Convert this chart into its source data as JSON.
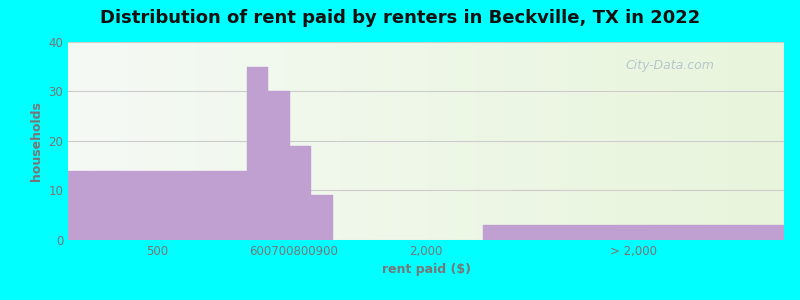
{
  "title": "Distribution of rent paid by renters in Beckville, TX in 2022",
  "xlabel": "rent paid ($)",
  "ylabel": "households",
  "bar_values": [
    14,
    35,
    30,
    19,
    9,
    3
  ],
  "bar_color": "#c0a0d0",
  "bar_edge_color": "#c0a0d0",
  "ylim": [
    0,
    40
  ],
  "yticks": [
    0,
    10,
    20,
    30,
    40
  ],
  "background_color": "#00ffff",
  "title_fontsize": 13,
  "axis_label_fontsize": 9,
  "tick_fontsize": 8.5,
  "title_color": "#111111",
  "tick_color": "#777777",
  "axis_label_color": "#777777",
  "grid_color": "#cccccc",
  "xtick_labels": [
    "500",
    "600700800900",
    "2,000",
    "> 2,000"
  ],
  "watermark": "City-Data.com"
}
